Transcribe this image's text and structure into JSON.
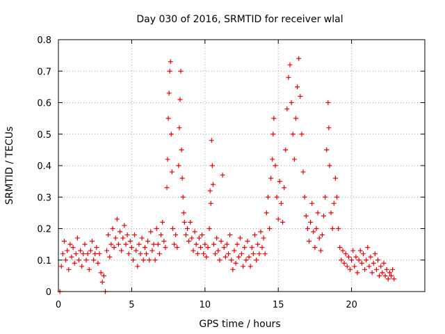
{
  "chart_data": {
    "type": "scatter",
    "title": "Day 030 of 2016, SRMTID for receiver wlal",
    "xlabel": "GPS time / hours",
    "ylabel": "SRMTID / TECUs",
    "xlim": [
      0,
      25
    ],
    "ylim": [
      0,
      0.8
    ],
    "xticks": [
      0,
      5,
      10,
      15,
      20
    ],
    "yticks": [
      0,
      0.1,
      0.2,
      0.3,
      0.4,
      0.5,
      0.6,
      0.7,
      0.8
    ],
    "xtick_labels": [
      "0",
      "5",
      "10",
      "15",
      "20"
    ],
    "ytick_labels": [
      "0",
      "0.1",
      "0.2",
      "0.3",
      "0.4",
      "0.5",
      "0.6",
      "0.7",
      "0.8"
    ],
    "grid": true,
    "marker": "+",
    "color": "#ee0000",
    "x_range_of_data": [
      0,
      23
    ],
    "series": [
      {
        "name": "SRMTID",
        "points": [
          [
            0.1,
            0.0
          ],
          [
            3.2,
            0.0
          ],
          [
            0.2,
            0.08
          ],
          [
            0.3,
            0.12
          ],
          [
            0.4,
            0.16
          ],
          [
            0.5,
            0.1
          ],
          [
            0.6,
            0.13
          ],
          [
            0.7,
            0.07
          ],
          [
            0.8,
            0.15
          ],
          [
            0.9,
            0.11
          ],
          [
            1.0,
            0.14
          ],
          [
            1.1,
            0.09
          ],
          [
            1.2,
            0.12
          ],
          [
            1.3,
            0.17
          ],
          [
            1.4,
            0.1
          ],
          [
            1.5,
            0.13
          ],
          [
            1.6,
            0.08
          ],
          [
            1.7,
            0.12
          ],
          [
            1.8,
            0.15
          ],
          [
            1.9,
            0.1
          ],
          [
            2.0,
            0.12
          ],
          [
            2.1,
            0.07
          ],
          [
            2.2,
            0.13
          ],
          [
            2.3,
            0.16
          ],
          [
            2.4,
            0.1
          ],
          [
            2.5,
            0.12
          ],
          [
            2.6,
            0.14
          ],
          [
            2.7,
            0.09
          ],
          [
            2.8,
            0.12
          ],
          [
            2.9,
            0.06
          ],
          [
            3.0,
            0.03
          ],
          [
            3.1,
            0.05
          ],
          [
            3.3,
            0.13
          ],
          [
            3.4,
            0.18
          ],
          [
            3.5,
            0.11
          ],
          [
            3.6,
            0.15
          ],
          [
            3.7,
            0.2
          ],
          [
            3.8,
            0.14
          ],
          [
            3.9,
            0.17
          ],
          [
            4.0,
            0.23
          ],
          [
            4.1,
            0.15
          ],
          [
            4.2,
            0.19
          ],
          [
            4.3,
            0.13
          ],
          [
            4.4,
            0.17
          ],
          [
            4.5,
            0.21
          ],
          [
            4.6,
            0.15
          ],
          [
            4.7,
            0.18
          ],
          [
            4.8,
            0.12
          ],
          [
            4.9,
            0.16
          ],
          [
            5.0,
            0.14
          ],
          [
            5.1,
            0.1
          ],
          [
            5.2,
            0.18
          ],
          [
            5.3,
            0.13
          ],
          [
            5.4,
            0.08
          ],
          [
            5.5,
            0.15
          ],
          [
            5.6,
            0.12
          ],
          [
            5.7,
            0.17
          ],
          [
            5.8,
            0.1
          ],
          [
            5.9,
            0.14
          ],
          [
            6.0,
            0.12
          ],
          [
            6.1,
            0.16
          ],
          [
            6.2,
            0.1
          ],
          [
            6.3,
            0.19
          ],
          [
            6.4,
            0.13
          ],
          [
            6.5,
            0.15
          ],
          [
            6.6,
            0.1
          ],
          [
            6.7,
            0.2
          ],
          [
            6.8,
            0.15
          ],
          [
            6.9,
            0.12
          ],
          [
            7.0,
            0.18
          ],
          [
            7.1,
            0.22
          ],
          [
            7.2,
            0.16
          ],
          [
            7.3,
            0.14
          ],
          [
            7.4,
            0.33
          ],
          [
            7.45,
            0.42
          ],
          [
            7.5,
            0.55
          ],
          [
            7.55,
            0.63
          ],
          [
            7.6,
            0.7
          ],
          [
            7.65,
            0.73
          ],
          [
            7.7,
            0.5
          ],
          [
            7.75,
            0.38
          ],
          [
            7.8,
            0.2
          ],
          [
            7.9,
            0.15
          ],
          [
            8.0,
            0.18
          ],
          [
            8.1,
            0.14
          ],
          [
            8.2,
            0.4
          ],
          [
            8.25,
            0.52
          ],
          [
            8.3,
            0.61
          ],
          [
            8.35,
            0.7
          ],
          [
            8.4,
            0.45
          ],
          [
            8.45,
            0.36
          ],
          [
            8.5,
            0.3
          ],
          [
            8.55,
            0.25
          ],
          [
            8.6,
            0.22
          ],
          [
            8.7,
            0.18
          ],
          [
            8.8,
            0.2
          ],
          [
            8.9,
            0.16
          ],
          [
            9.0,
            0.22
          ],
          [
            9.1,
            0.17
          ],
          [
            9.2,
            0.13
          ],
          [
            9.3,
            0.19
          ],
          [
            9.4,
            0.15
          ],
          [
            9.5,
            0.12
          ],
          [
            9.6,
            0.17
          ],
          [
            9.7,
            0.14
          ],
          [
            9.8,
            0.18
          ],
          [
            9.9,
            0.12
          ],
          [
            10.0,
            0.15
          ],
          [
            10.1,
            0.11
          ],
          [
            10.2,
            0.14
          ],
          [
            10.3,
            0.2
          ],
          [
            10.35,
            0.32
          ],
          [
            10.4,
            0.28
          ],
          [
            10.45,
            0.48
          ],
          [
            10.5,
            0.4
          ],
          [
            10.55,
            0.34
          ],
          [
            10.6,
            0.15
          ],
          [
            10.7,
            0.12
          ],
          [
            10.8,
            0.17
          ],
          [
            10.9,
            0.13
          ],
          [
            11.0,
            0.1
          ],
          [
            11.1,
            0.16
          ],
          [
            11.2,
            0.37
          ],
          [
            11.3,
            0.14
          ],
          [
            11.4,
            0.11
          ],
          [
            11.5,
            0.15
          ],
          [
            11.6,
            0.12
          ],
          [
            11.7,
            0.18
          ],
          [
            11.8,
            0.1
          ],
          [
            11.9,
            0.07
          ],
          [
            12.0,
            0.13
          ],
          [
            12.1,
            0.09
          ],
          [
            12.2,
            0.15
          ],
          [
            12.3,
            0.11
          ],
          [
            12.4,
            0.17
          ],
          [
            12.5,
            0.12
          ],
          [
            12.6,
            0.08
          ],
          [
            12.7,
            0.14
          ],
          [
            12.8,
            0.1
          ],
          [
            12.9,
            0.16
          ],
          [
            13.0,
            0.11
          ],
          [
            13.1,
            0.08
          ],
          [
            13.2,
            0.14
          ],
          [
            13.3,
            0.12
          ],
          [
            13.4,
            0.18
          ],
          [
            13.5,
            0.1
          ],
          [
            13.6,
            0.15
          ],
          [
            13.7,
            0.12
          ],
          [
            13.8,
            0.19
          ],
          [
            13.9,
            0.14
          ],
          [
            14.0,
            0.17
          ],
          [
            14.1,
            0.12
          ],
          [
            14.2,
            0.25
          ],
          [
            14.3,
            0.3
          ],
          [
            14.4,
            0.2
          ],
          [
            14.5,
            0.36
          ],
          [
            14.6,
            0.42
          ],
          [
            14.65,
            0.5
          ],
          [
            14.7,
            0.55
          ],
          [
            14.8,
            0.4
          ],
          [
            14.9,
            0.3
          ],
          [
            15.0,
            0.23
          ],
          [
            15.1,
            0.35
          ],
          [
            15.2,
            0.28
          ],
          [
            15.3,
            0.22
          ],
          [
            15.4,
            0.33
          ],
          [
            15.5,
            0.45
          ],
          [
            15.6,
            0.58
          ],
          [
            15.7,
            0.68
          ],
          [
            15.8,
            0.72
          ],
          [
            15.9,
            0.6
          ],
          [
            16.0,
            0.5
          ],
          [
            16.1,
            0.42
          ],
          [
            16.2,
            0.55
          ],
          [
            16.3,
            0.65
          ],
          [
            16.4,
            0.74
          ],
          [
            16.5,
            0.62
          ],
          [
            16.6,
            0.5
          ],
          [
            16.7,
            0.38
          ],
          [
            16.8,
            0.3
          ],
          [
            16.9,
            0.24
          ],
          [
            17.0,
            0.2
          ],
          [
            17.1,
            0.16
          ],
          [
            17.2,
            0.22
          ],
          [
            17.3,
            0.28
          ],
          [
            17.4,
            0.19
          ],
          [
            17.5,
            0.14
          ],
          [
            17.6,
            0.2
          ],
          [
            17.7,
            0.25
          ],
          [
            17.8,
            0.17
          ],
          [
            17.9,
            0.13
          ],
          [
            18.0,
            0.18
          ],
          [
            18.1,
            0.24
          ],
          [
            18.2,
            0.3
          ],
          [
            18.3,
            0.45
          ],
          [
            18.4,
            0.6
          ],
          [
            18.45,
            0.52
          ],
          [
            18.5,
            0.4
          ],
          [
            18.6,
            0.25
          ],
          [
            18.7,
            0.2
          ],
          [
            18.8,
            0.28
          ],
          [
            18.9,
            0.36
          ],
          [
            19.0,
            0.3
          ],
          [
            19.1,
            0.2
          ],
          [
            19.2,
            0.14
          ],
          [
            19.3,
            0.1
          ],
          [
            19.4,
            0.13
          ],
          [
            19.5,
            0.09
          ],
          [
            19.6,
            0.12
          ],
          [
            19.7,
            0.08
          ],
          [
            19.8,
            0.11
          ],
          [
            19.9,
            0.07
          ],
          [
            20.0,
            0.1
          ],
          [
            20.1,
            0.13
          ],
          [
            20.2,
            0.08
          ],
          [
            20.3,
            0.11
          ],
          [
            20.4,
            0.06
          ],
          [
            20.5,
            0.1
          ],
          [
            20.6,
            0.13
          ],
          [
            20.7,
            0.09
          ],
          [
            20.8,
            0.12
          ],
          [
            20.9,
            0.07
          ],
          [
            21.0,
            0.1
          ],
          [
            21.1,
            0.14
          ],
          [
            21.2,
            0.08
          ],
          [
            21.3,
            0.11
          ],
          [
            21.4,
            0.06
          ],
          [
            21.5,
            0.09
          ],
          [
            21.6,
            0.12
          ],
          [
            21.7,
            0.07
          ],
          [
            21.8,
            0.1
          ],
          [
            21.9,
            0.05
          ],
          [
            22.0,
            0.08
          ],
          [
            22.1,
            0.06
          ],
          [
            22.2,
            0.09
          ],
          [
            22.3,
            0.05
          ],
          [
            22.4,
            0.07
          ],
          [
            22.5,
            0.04
          ],
          [
            22.6,
            0.06
          ],
          [
            22.7,
            0.05
          ],
          [
            22.8,
            0.07
          ],
          [
            22.9,
            0.04
          ]
        ]
      }
    ]
  }
}
